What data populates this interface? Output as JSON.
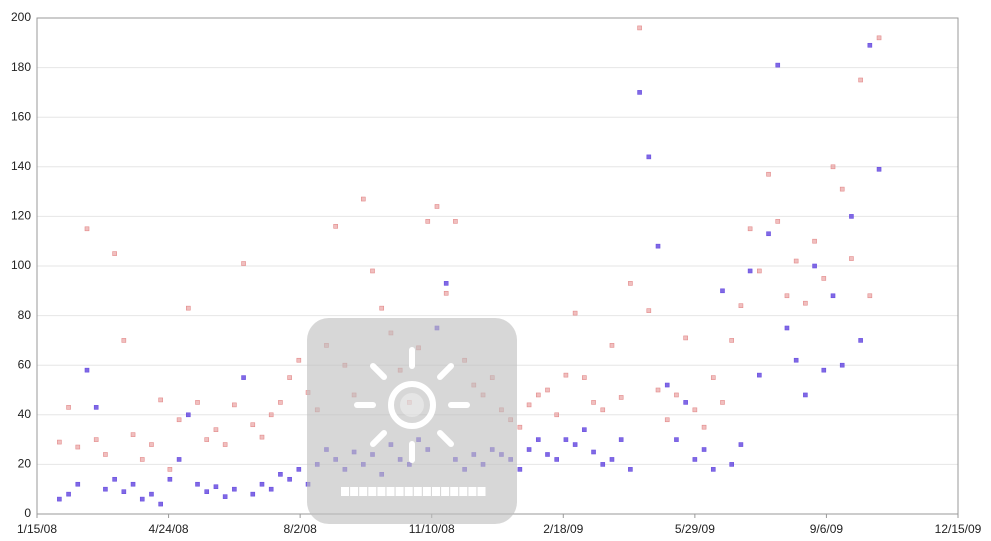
{
  "chart_data": {
    "type": "scatter",
    "x": [
      "2/1/08",
      "2/8/08",
      "2/15/08",
      "2/22/08",
      "2/29/08",
      "3/7/08",
      "3/14/08",
      "3/21/08",
      "3/28/08",
      "4/4/08",
      "4/11/08",
      "4/18/08",
      "4/25/08",
      "5/2/08",
      "5/9/08",
      "5/16/08",
      "5/23/08",
      "5/30/08",
      "6/6/08",
      "6/13/08",
      "6/20/08",
      "6/27/08",
      "7/4/08",
      "7/11/08",
      "7/18/08",
      "7/25/08",
      "8/1/08",
      "8/8/08",
      "8/15/08",
      "8/22/08",
      "8/29/08",
      "9/5/08",
      "9/12/08",
      "9/19/08",
      "9/26/08",
      "10/3/08",
      "10/10/08",
      "10/17/08",
      "10/24/08",
      "10/31/08",
      "11/7/08",
      "11/14/08",
      "11/21/08",
      "11/28/08",
      "12/5/08",
      "12/12/08",
      "12/19/08",
      "12/26/08",
      "1/2/09",
      "1/9/09",
      "1/16/09",
      "1/23/09",
      "1/30/09",
      "2/6/09",
      "2/13/09",
      "2/20/09",
      "2/27/09",
      "3/6/09",
      "3/13/09",
      "3/20/09",
      "3/27/09",
      "4/3/09",
      "4/10/09",
      "4/17/09",
      "4/24/09",
      "5/1/09",
      "5/8/09",
      "5/15/09",
      "5/22/09",
      "5/29/09",
      "6/5/09",
      "6/12/09",
      "6/19/09",
      "6/26/09",
      "7/3/09",
      "7/10/09",
      "7/17/09",
      "7/24/09",
      "7/31/09",
      "8/7/09",
      "8/14/09",
      "8/21/09",
      "8/28/09",
      "9/4/09",
      "9/11/09",
      "9/18/09",
      "9/25/09",
      "10/2/09",
      "10/9/09",
      "10/16/09"
    ],
    "series": [
      {
        "color": "#e38a8a",
        "values": [
          29,
          43,
          27,
          115,
          30,
          24,
          105,
          70,
          32,
          22,
          28,
          46,
          18,
          38,
          83,
          45,
          30,
          34,
          28,
          44,
          101,
          36,
          31,
          40,
          45,
          55,
          62,
          49,
          42,
          68,
          116,
          60,
          48,
          127,
          98,
          83,
          73,
          58,
          45,
          67,
          118,
          124,
          89,
          118,
          62,
          52,
          48,
          55,
          42,
          38,
          35,
          44,
          48,
          50,
          40,
          56,
          81,
          55,
          45,
          42,
          68,
          47,
          93,
          196,
          82,
          50,
          38,
          48,
          71,
          42,
          35,
          55,
          45,
          70,
          84,
          115,
          98,
          137,
          118,
          88,
          102,
          85,
          110,
          95,
          140,
          131,
          103,
          175,
          88,
          192
        ]
      },
      {
        "color": "#6a4fe0",
        "values": [
          6,
          8,
          12,
          58,
          43,
          10,
          14,
          9,
          12,
          6,
          8,
          4,
          14,
          22,
          40,
          12,
          9,
          11,
          7,
          10,
          55,
          8,
          12,
          10,
          16,
          14,
          18,
          12,
          20,
          26,
          22,
          18,
          25,
          20,
          24,
          16,
          28,
          22,
          20,
          30,
          26,
          75,
          93,
          22,
          18,
          24,
          20,
          26,
          24,
          22,
          18,
          26,
          30,
          24,
          22,
          30,
          28,
          34,
          25,
          20,
          22,
          30,
          18,
          170,
          144,
          108,
          52,
          30,
          45,
          22,
          26,
          18,
          90,
          20,
          28,
          98,
          56,
          113,
          181,
          75,
          62,
          48,
          100,
          58,
          88,
          60,
          120,
          70,
          189,
          139
        ]
      }
    ],
    "xlim": [
      "1/15/08",
      "12/15/09"
    ],
    "xticks": [
      "1/15/08",
      "4/24/08",
      "8/2/08",
      "11/10/08",
      "2/18/09",
      "5/29/09",
      "9/6/09",
      "12/15/09"
    ],
    "ylim": [
      0,
      200
    ],
    "yticks": [
      0,
      20,
      40,
      60,
      80,
      100,
      120,
      140,
      160,
      180,
      200
    ],
    "grid": true
  }
}
